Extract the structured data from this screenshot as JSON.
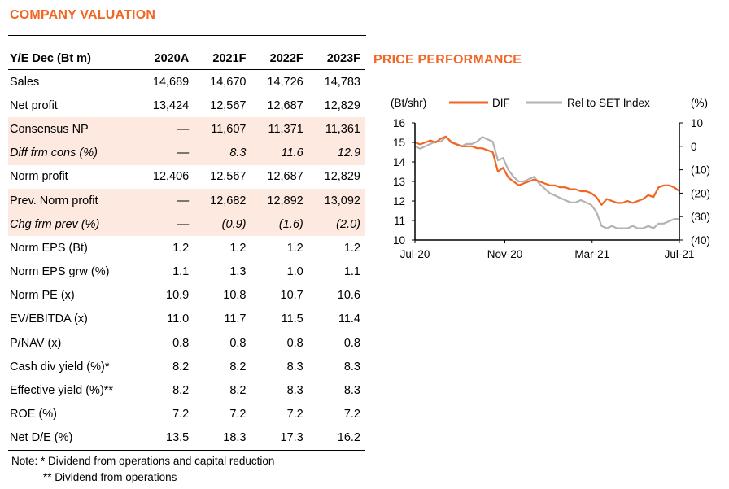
{
  "valuation": {
    "title": "COMPANY VALUATION",
    "headers": [
      "Y/E Dec (Bt m)",
      "2020A",
      "2021F",
      "2022F",
      "2023F"
    ],
    "rows": [
      {
        "label": "Sales",
        "cells": [
          "14,689",
          "14,670",
          "14,726",
          "14,783"
        ],
        "style": ""
      },
      {
        "label": "Net profit",
        "cells": [
          "13,424",
          "12,567",
          "12,687",
          "12,829"
        ],
        "style": ""
      },
      {
        "label": "Consensus NP",
        "cells": [
          "—",
          "11,607",
          "11,371",
          "11,361"
        ],
        "style": "hl"
      },
      {
        "label": "Diff frm cons (%)",
        "cells": [
          "—",
          "8.3",
          "11.6",
          "12.9"
        ],
        "style": "hl it"
      },
      {
        "label": "Norm profit",
        "cells": [
          "12,406",
          "12,567",
          "12,687",
          "12,829"
        ],
        "style": ""
      },
      {
        "label": "Prev. Norm profit",
        "cells": [
          "—",
          "12,682",
          "12,892",
          "13,092"
        ],
        "style": "hl"
      },
      {
        "label": "Chg frm prev (%)",
        "cells": [
          "—",
          "(0.9)",
          "(1.6)",
          "(2.0)"
        ],
        "style": "hl it"
      },
      {
        "label": "Norm EPS (Bt)",
        "cells": [
          "1.2",
          "1.2",
          "1.2",
          "1.2"
        ],
        "style": ""
      },
      {
        "label": "Norm EPS grw (%)",
        "cells": [
          "1.1",
          "1.3",
          "1.0",
          "1.1"
        ],
        "style": ""
      },
      {
        "label": "Norm PE (x)",
        "cells": [
          "10.9",
          "10.8",
          "10.7",
          "10.6"
        ],
        "style": ""
      },
      {
        "label": "EV/EBITDA (x)",
        "cells": [
          "11.0",
          "11.7",
          "11.5",
          "11.4"
        ],
        "style": ""
      },
      {
        "label": "P/NAV (x)",
        "cells": [
          "0.8",
          "0.8",
          "0.8",
          "0.8"
        ],
        "style": ""
      },
      {
        "label": "Cash div yield (%)*",
        "cells": [
          "8.2",
          "8.2",
          "8.3",
          "8.3"
        ],
        "style": ""
      },
      {
        "label": "Effective yield (%)**",
        "cells": [
          "8.2",
          "8.2",
          "8.3",
          "8.3"
        ],
        "style": ""
      },
      {
        "label": "ROE (%)",
        "cells": [
          "7.2",
          "7.2",
          "7.2",
          "7.2"
        ],
        "style": ""
      },
      {
        "label": "Net D/E (%)",
        "cells": [
          "13.5",
          "18.3",
          "17.3",
          "16.2"
        ],
        "style": "last"
      }
    ],
    "note1": "Note: *  Dividend from operations and capital reduction",
    "note2": "** Dividend from operations"
  },
  "chart_data": {
    "type": "line",
    "title": "PRICE PERFORMANCE",
    "ylabel_left": "(Bt/shr)",
    "ylabel_right": "(%)",
    "xticks": [
      "Jul-20",
      "Nov-20",
      "Mar-21",
      "Jul-21"
    ],
    "ylim": [
      10,
      16
    ],
    "yticks": [
      "10",
      "11",
      "12",
      "13",
      "14",
      "15",
      "16"
    ],
    "y2lim": [
      -40,
      10
    ],
    "y2ticks": [
      "10",
      "0",
      "(10)",
      "(20)",
      "(30)",
      "(40)"
    ],
    "legend_position": "top",
    "series": [
      {
        "name": "DIF",
        "axis": "left",
        "color": "#f26522",
        "values": [
          15.0,
          14.9,
          15.0,
          15.1,
          15.0,
          15.2,
          15.3,
          15.0,
          14.9,
          14.8,
          14.8,
          14.8,
          14.7,
          14.7,
          14.6,
          14.5,
          13.5,
          13.7,
          13.2,
          13.0,
          12.8,
          12.9,
          13.0,
          13.1,
          13.0,
          12.9,
          12.8,
          12.8,
          12.7,
          12.7,
          12.6,
          12.6,
          12.5,
          12.5,
          12.4,
          12.2,
          11.8,
          12.1,
          12.0,
          11.9,
          11.9,
          12.0,
          11.9,
          12.0,
          12.1,
          12.3,
          12.2,
          12.7,
          12.8,
          12.8,
          12.7,
          12.5
        ]
      },
      {
        "name": "Rel to SET Index",
        "axis": "right",
        "color": "#b3b3b3",
        "values": [
          0,
          -1,
          0,
          1,
          2,
          2,
          4,
          2,
          1,
          0,
          1,
          1,
          2,
          4,
          3,
          2,
          -6,
          -5,
          -10,
          -13,
          -15,
          -15,
          -14,
          -13,
          -16,
          -18,
          -20,
          -21,
          -22,
          -23,
          -24,
          -24,
          -23,
          -24,
          -25,
          -28,
          -34,
          -35,
          -34,
          -35,
          -35,
          -35,
          -34,
          -35,
          -35,
          -34,
          -35,
          -33,
          -33,
          -32,
          -31,
          -31
        ]
      }
    ]
  }
}
